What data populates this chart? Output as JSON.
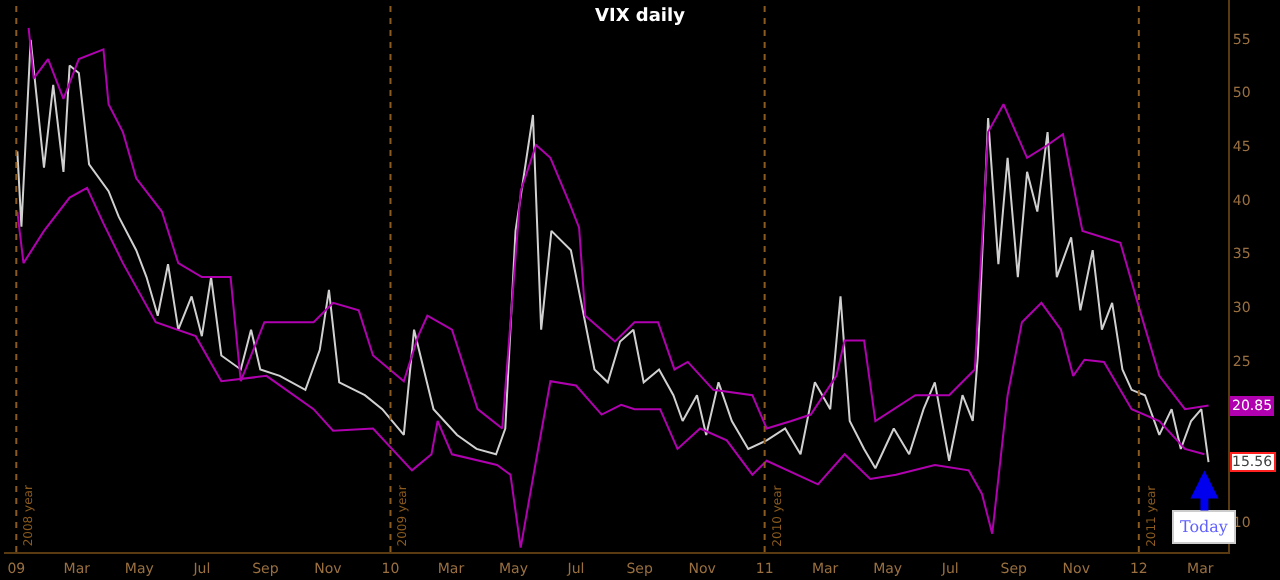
{
  "chart_data": {
    "type": "line",
    "title": "VIX daily",
    "xlim": [
      "2008-12-20",
      "2012-03-28"
    ],
    "ylim": [
      7.2,
      58.6
    ],
    "xticks": [
      {
        "value": "2009-01-01",
        "label": "09"
      },
      {
        "value": "2009-03-01",
        "label": "Mar"
      },
      {
        "value": "2009-05-01",
        "label": "May"
      },
      {
        "value": "2009-07-01",
        "label": "Jul"
      },
      {
        "value": "2009-09-01",
        "label": "Sep"
      },
      {
        "value": "2009-11-01",
        "label": "Nov"
      },
      {
        "value": "2010-01-01",
        "label": "10"
      },
      {
        "value": "2010-03-01",
        "label": "Mar"
      },
      {
        "value": "2010-05-01",
        "label": "May"
      },
      {
        "value": "2010-07-01",
        "label": "Jul"
      },
      {
        "value": "2010-09-01",
        "label": "Sep"
      },
      {
        "value": "2010-11-01",
        "label": "Nov"
      },
      {
        "value": "2011-01-01",
        "label": "11"
      },
      {
        "value": "2011-03-01",
        "label": "Mar"
      },
      {
        "value": "2011-05-01",
        "label": "May"
      },
      {
        "value": "2011-07-01",
        "label": "Jul"
      },
      {
        "value": "2011-09-01",
        "label": "Sep"
      },
      {
        "value": "2011-11-01",
        "label": "Nov"
      },
      {
        "value": "2012-01-01",
        "label": "12"
      },
      {
        "value": "2012-03-01",
        "label": "Mar"
      }
    ],
    "yticks": [
      10,
      25,
      30,
      35,
      40,
      45,
      50,
      55
    ],
    "grid": false,
    "legend": false,
    "marker": "none",
    "line_style": "solid",
    "series": [
      {
        "color": "#d0d0d0",
        "x": [
          "2009-01-02",
          "2009-01-06",
          "2009-01-15",
          "2009-01-28",
          "2009-02-06",
          "2009-02-16",
          "2009-02-22",
          "2009-03-03",
          "2009-03-13",
          "2009-04-01",
          "2009-04-11",
          "2009-04-28",
          "2009-05-08",
          "2009-05-19",
          "2009-05-29",
          "2009-06-08",
          "2009-06-21",
          "2009-07-01",
          "2009-07-10",
          "2009-07-20",
          "2009-08-08",
          "2009-08-18",
          "2009-08-27",
          "2009-09-15",
          "2009-10-10",
          "2009-10-24",
          "2009-11-02",
          "2009-11-12",
          "2009-12-07",
          "2009-12-24",
          "2010-01-14",
          "2010-01-24",
          "2010-02-12",
          "2010-03-07",
          "2010-03-26",
          "2010-04-14",
          "2010-04-23",
          "2010-05-03",
          "2010-05-20",
          "2010-05-28",
          "2010-06-07",
          "2010-06-26",
          "2010-07-19",
          "2010-08-01",
          "2010-08-13",
          "2010-08-26",
          "2010-09-05",
          "2010-09-20",
          "2010-10-04",
          "2010-10-13",
          "2010-10-27",
          "2010-11-05",
          "2010-11-17",
          "2010-11-30",
          "2010-12-16",
          "2011-01-03",
          "2011-01-21",
          "2011-02-05",
          "2011-02-19",
          "2011-03-06",
          "2011-03-16",
          "2011-03-25",
          "2011-04-08",
          "2011-04-19",
          "2011-05-07",
          "2011-05-22",
          "2011-06-05",
          "2011-06-16",
          "2011-06-30",
          "2011-07-13",
          "2011-07-23",
          "2011-07-28",
          "2011-08-07",
          "2011-08-17",
          "2011-08-26",
          "2011-09-05",
          "2011-09-14",
          "2011-09-24",
          "2011-10-04",
          "2011-10-13",
          "2011-10-27",
          "2011-11-05",
          "2011-11-17",
          "2011-11-26",
          "2011-12-06",
          "2011-12-16",
          "2011-12-25",
          "2012-01-07",
          "2012-01-21",
          "2012-02-02",
          "2012-02-11",
          "2012-02-21",
          "2012-03-02",
          "2012-03-09"
        ],
        "values": [
          44.5,
          37.5,
          54.9,
          43,
          50.7,
          42.6,
          52.5,
          51.8,
          43.3,
          40.8,
          38.4,
          35.3,
          32.8,
          29.2,
          34,
          27.9,
          31,
          27.3,
          32.8,
          25.5,
          24.2,
          27.9,
          24.2,
          23.6,
          22.3,
          26,
          31.6,
          23,
          21.8,
          20.5,
          18.1,
          27.9,
          20.5,
          18.1,
          16.8,
          16.3,
          18.7,
          37.1,
          47.9,
          27.9,
          37.1,
          35.3,
          24.2,
          23,
          26.8,
          27.9,
          23,
          24.2,
          21.8,
          19.4,
          21.8,
          18.1,
          23,
          19.4,
          16.8,
          17.6,
          18.7,
          16.3,
          23,
          20.5,
          31,
          19.4,
          16.8,
          15,
          18.7,
          16.3,
          20.5,
          23,
          15.7,
          21.8,
          19.4,
          25.5,
          47.6,
          34,
          43.9,
          32.8,
          42.6,
          38.9,
          46.3,
          32.8,
          36.5,
          29.7,
          35.3,
          27.9,
          30.4,
          24.2,
          22.3,
          21.8,
          18.1,
          20.5,
          16.8,
          19.4,
          20.5,
          15.56
        ]
      },
      {
        "color": "#b000b0",
        "x": [
          "2009-01-13",
          "2009-01-18",
          "2009-02-01",
          "2009-02-16",
          "2009-03-03",
          "2009-03-27",
          "2009-04-01",
          "2009-04-15",
          "2009-04-28",
          "2009-05-23",
          "2009-06-08",
          "2009-07-01",
          "2009-07-29",
          "2009-08-08",
          "2009-08-31",
          "2009-10-18",
          "2009-11-06",
          "2009-12-01",
          "2009-12-15",
          "2010-01-14",
          "2010-01-28",
          "2010-02-06",
          "2010-03-02",
          "2010-03-27",
          "2010-04-20",
          "2010-05-08",
          "2010-05-23",
          "2010-06-06",
          "2010-06-25",
          "2010-07-04",
          "2010-07-10",
          "2010-08-08",
          "2010-08-27",
          "2010-09-19",
          "2010-10-05",
          "2010-10-18",
          "2010-11-12",
          "2010-12-20",
          "2011-01-03",
          "2011-01-27",
          "2011-02-15",
          "2011-03-12",
          "2011-03-20",
          "2011-04-08",
          "2011-04-19",
          "2011-05-28",
          "2011-06-30",
          "2011-07-25",
          "2011-08-07",
          "2011-08-22",
          "2011-09-14",
          "2011-10-04",
          "2011-10-19",
          "2011-11-07",
          "2011-12-14",
          "2012-01-02",
          "2012-01-21",
          "2012-02-15",
          "2012-03-09"
        ],
        "values": [
          56,
          51.3,
          53.1,
          49.4,
          53.1,
          54,
          48.9,
          46.3,
          42,
          38.9,
          34.1,
          32.8,
          32.8,
          23.1,
          28.6,
          28.6,
          30.4,
          29.7,
          25.5,
          23.1,
          27.3,
          29.2,
          27.9,
          20.5,
          18.7,
          40.8,
          45.1,
          43.9,
          39.6,
          37.4,
          29.2,
          26.8,
          28.6,
          28.6,
          24.2,
          24.9,
          22.3,
          21.8,
          18.7,
          19.4,
          20,
          23.6,
          26.9,
          26.9,
          19.4,
          21.8,
          21.8,
          24.2,
          46.3,
          48.9,
          43.9,
          45.1,
          46.1,
          37.1,
          36,
          29.7,
          23.6,
          20.5,
          20.85
        ]
      },
      {
        "color": "#b000b0",
        "x": [
          "2009-01-02",
          "2009-01-08",
          "2009-01-28",
          "2009-02-22",
          "2009-03-11",
          "2009-03-27",
          "2009-04-15",
          "2009-05-17",
          "2009-06-25",
          "2009-07-20",
          "2009-09-02",
          "2009-10-18",
          "2009-11-06",
          "2009-12-15",
          "2010-01-22",
          "2010-02-10",
          "2010-02-16",
          "2010-03-02",
          "2010-04-15",
          "2010-04-28",
          "2010-05-08",
          "2010-05-23",
          "2010-06-06",
          "2010-07-01",
          "2010-07-26",
          "2010-08-14",
          "2010-08-27",
          "2010-09-21",
          "2010-10-08",
          "2010-10-30",
          "2010-11-25",
          "2010-12-20",
          "2011-01-03",
          "2011-02-22",
          "2011-03-20",
          "2011-04-14",
          "2011-05-09",
          "2011-06-16",
          "2011-07-19",
          "2011-08-01",
          "2011-08-11",
          "2011-08-26",
          "2011-09-09",
          "2011-09-28",
          "2011-10-17",
          "2011-10-29",
          "2011-11-09",
          "2011-11-28",
          "2011-12-25",
          "2012-01-21",
          "2012-02-15",
          "2012-03-05"
        ],
        "values": [
          38.9,
          34.1,
          37.1,
          40.2,
          41.1,
          37.8,
          34.1,
          28.6,
          27.3,
          23.1,
          23.6,
          20.5,
          18.5,
          18.7,
          14.8,
          16.3,
          19.4,
          16.3,
          15.3,
          14.4,
          7.6,
          15.7,
          23.1,
          22.7,
          20,
          20.9,
          20.5,
          20.5,
          16.8,
          18.7,
          17.6,
          14.4,
          15.7,
          13.5,
          16.3,
          14,
          14.4,
          15.3,
          14.8,
          12.6,
          8.9,
          21.8,
          28.6,
          30.4,
          27.9,
          23.6,
          25.1,
          24.9,
          20.5,
          19.4,
          16.8,
          16.3
        ]
      }
    ],
    "ref_lines": [
      {
        "axis": "x",
        "value": "2009-01-01",
        "label": "2008 year",
        "color": "#8a5a1e",
        "line_style": "dotted"
      },
      {
        "axis": "x",
        "value": "2010-01-01",
        "label": "2009 year",
        "color": "#8a5a1e",
        "line_style": "dotted"
      },
      {
        "axis": "x",
        "value": "2011-01-01",
        "label": "2010 year",
        "color": "#8a5a1e",
        "line_style": "dotted"
      },
      {
        "axis": "x",
        "value": "2012-01-01",
        "label": "2011 year",
        "color": "#8a5a1e",
        "line_style": "dotted"
      }
    ],
    "annotations": [
      {
        "text": "20.85",
        "x": "2012-03-09",
        "y": 20.85
      },
      {
        "text": "15.56",
        "x": "2012-03-09",
        "y": 15.56
      },
      {
        "text": "Today",
        "x": "2012-03-05",
        "y": 14.8
      }
    ]
  }
}
